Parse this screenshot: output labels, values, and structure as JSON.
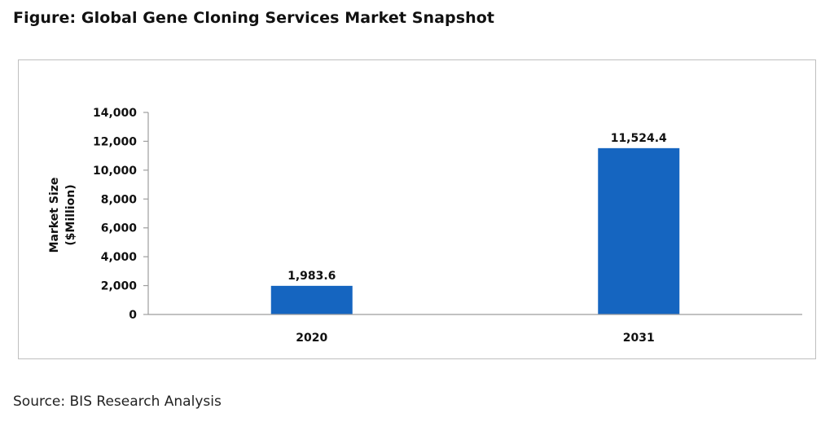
{
  "figure_title": "Figure: Global Gene Cloning Services Market Snapshot",
  "source_text": "Source: BIS Research Analysis",
  "colors": {
    "bar": "#1565c0",
    "axis": "#9e9e9e",
    "frame": "#bfbfbf"
  },
  "chart_data": {
    "type": "bar",
    "categories": [
      "2020",
      "2031"
    ],
    "values": [
      1983.6,
      11524.4
    ],
    "data_labels": [
      "1,983.6",
      "11,524.4"
    ],
    "ylabel": [
      "Market Size",
      "($Million)"
    ],
    "xlabel": "",
    "ylim": [
      0,
      14000
    ],
    "yticks": [
      0,
      2000,
      4000,
      6000,
      8000,
      10000,
      12000,
      14000
    ],
    "ytick_labels": [
      "0",
      "2,000",
      "4,000",
      "6,000",
      "8,000",
      "10,000",
      "12,000",
      "14,000"
    ],
    "grid": false,
    "legend": "none"
  }
}
